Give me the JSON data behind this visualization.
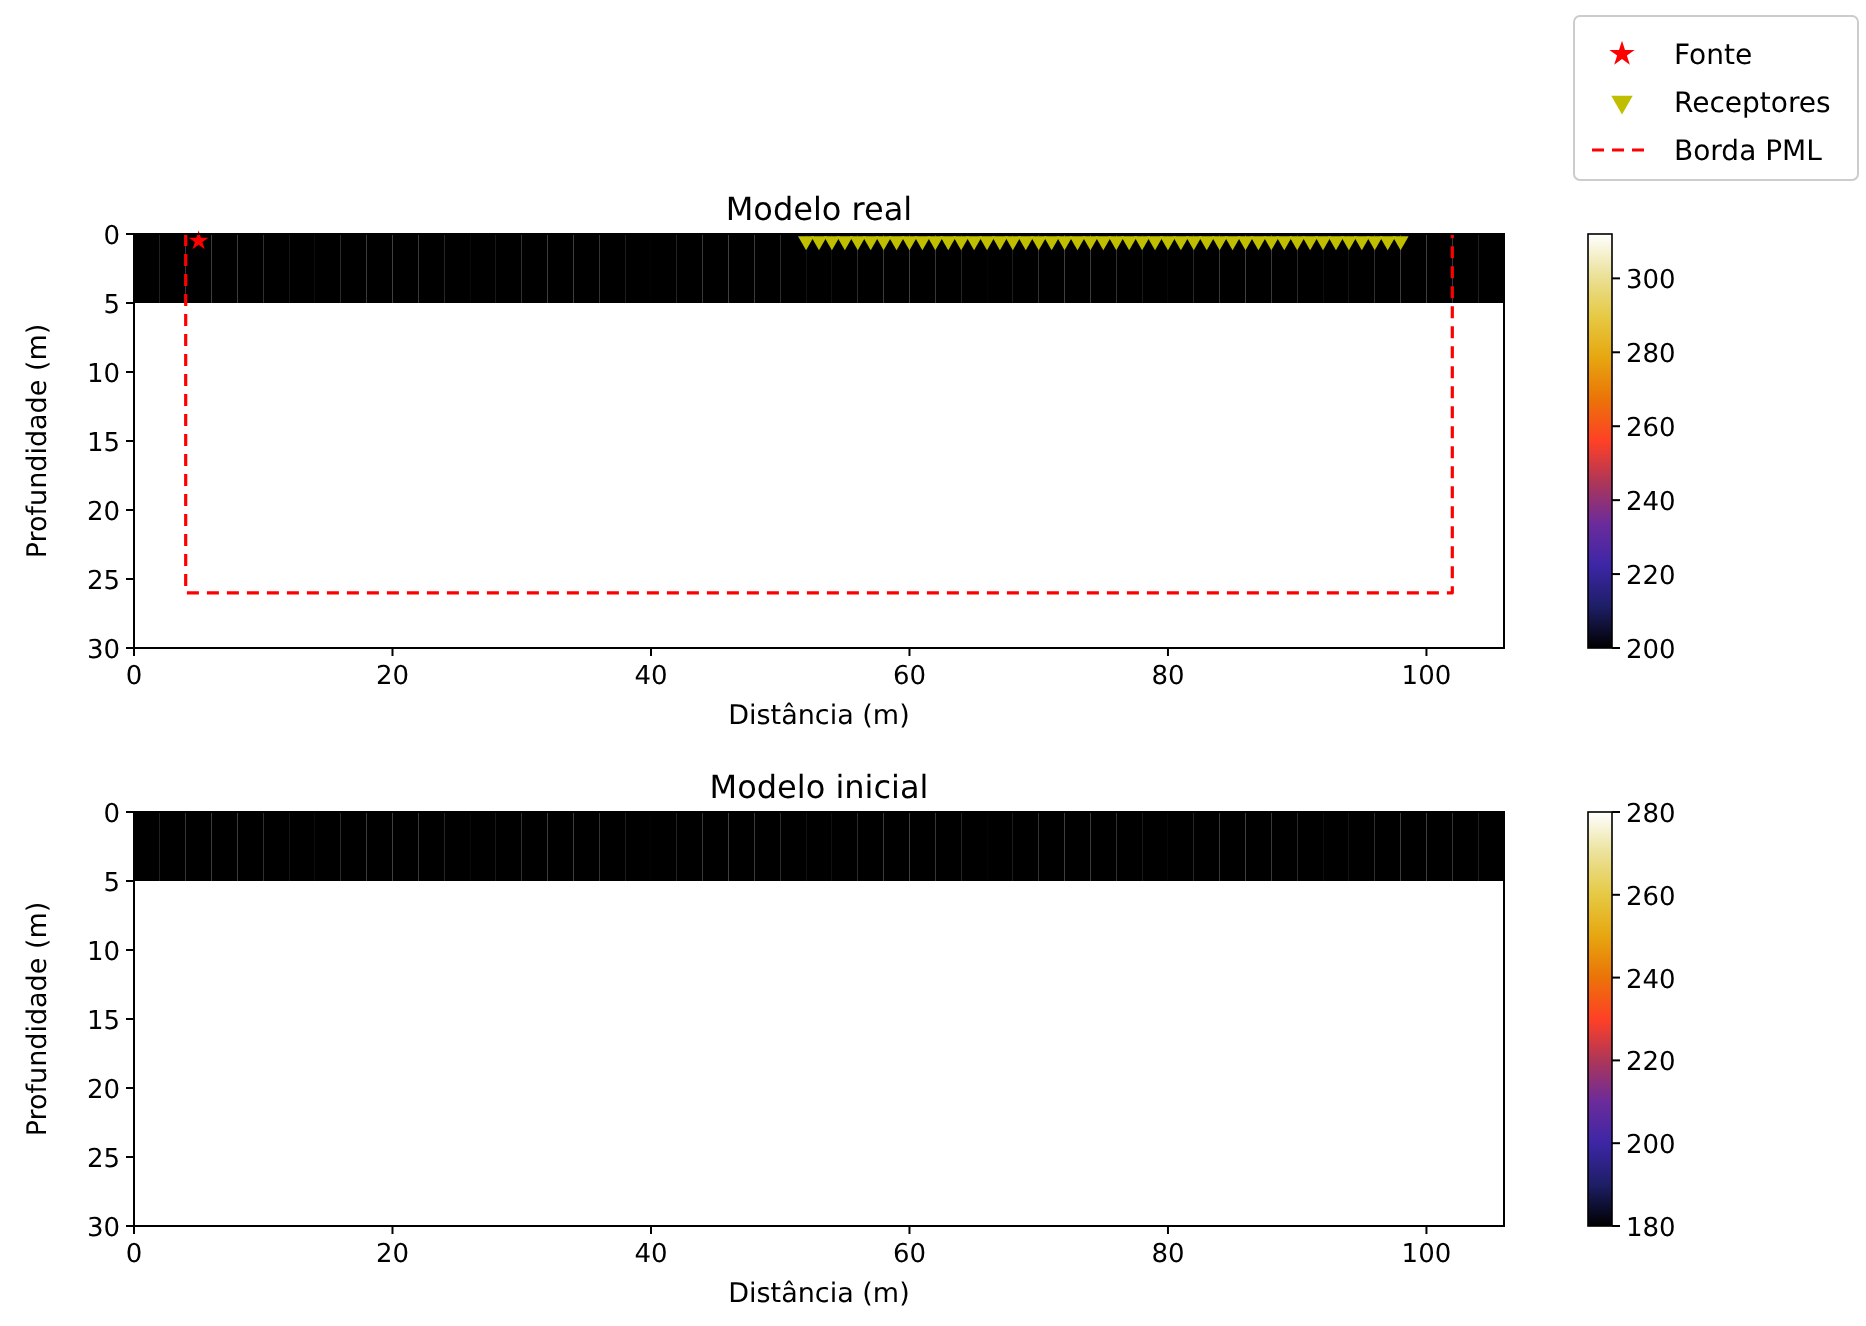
{
  "chart_data": [
    {
      "type": "heatmap",
      "title": "Modelo real",
      "xlabel": "Distância (m)",
      "ylabel": "Profundidade (m)",
      "x": [
        1,
        3,
        5,
        7,
        9,
        11,
        13,
        15,
        17,
        19,
        21,
        23,
        25,
        27,
        29,
        31,
        33,
        35,
        37,
        39,
        41,
        43,
        45,
        47,
        49,
        51,
        53,
        55,
        57,
        59,
        61,
        63,
        65,
        67,
        69,
        71,
        73,
        75,
        77,
        79,
        81,
        83,
        85,
        87,
        89,
        91,
        93,
        95,
        97,
        99,
        101,
        103,
        105
      ],
      "y": [
        2.5,
        7.5,
        12.5,
        17.5,
        22.5,
        27.5
      ],
      "cells": [
        [
          200,
          200,
          200,
          200,
          200,
          200,
          200,
          200,
          200,
          200,
          200,
          200,
          200,
          200,
          200,
          200,
          200,
          200,
          200,
          200,
          200,
          200,
          200,
          200,
          200,
          200,
          200,
          200,
          200,
          200,
          200,
          200,
          200,
          200,
          200,
          200,
          200,
          200,
          200,
          200,
          200,
          200,
          200,
          200,
          200,
          200,
          200,
          200,
          200,
          200,
          200,
          200,
          200
        ],
        [
          312,
          312,
          312,
          312,
          312,
          312,
          312,
          312,
          312,
          312,
          312,
          312,
          312,
          312,
          312,
          312,
          312,
          312,
          312,
          312,
          312,
          312,
          312,
          312,
          312,
          312,
          312,
          312,
          312,
          312,
          312,
          312,
          312,
          312,
          312,
          312,
          312,
          312,
          312,
          312,
          312,
          312,
          312,
          312,
          312,
          312,
          312,
          312,
          312,
          312,
          312,
          312,
          312
        ],
        [
          312,
          312,
          312,
          312,
          312,
          312,
          312,
          312,
          312,
          312,
          312,
          312,
          312,
          312,
          312,
          312,
          312,
          312,
          312,
          312,
          312,
          312,
          312,
          312,
          312,
          312,
          312,
          312,
          312,
          312,
          312,
          312,
          312,
          312,
          312,
          312,
          312,
          312,
          312,
          312,
          312,
          312,
          312,
          312,
          312,
          312,
          312,
          312,
          312,
          312,
          312,
          312,
          312
        ],
        [
          312,
          312,
          312,
          312,
          312,
          312,
          312,
          312,
          312,
          312,
          312,
          312,
          312,
          312,
          312,
          312,
          312,
          312,
          312,
          312,
          312,
          312,
          312,
          312,
          312,
          312,
          312,
          312,
          312,
          312,
          312,
          312,
          312,
          312,
          312,
          312,
          312,
          312,
          312,
          312,
          312,
          312,
          312,
          312,
          312,
          312,
          312,
          312,
          312,
          312,
          312,
          312,
          312
        ],
        [
          312,
          312,
          312,
          312,
          312,
          312,
          312,
          312,
          312,
          312,
          312,
          312,
          312,
          312,
          312,
          312,
          312,
          312,
          312,
          312,
          312,
          312,
          312,
          312,
          312,
          312,
          312,
          312,
          312,
          312,
          312,
          312,
          312,
          312,
          312,
          312,
          312,
          312,
          312,
          312,
          312,
          312,
          312,
          312,
          312,
          312,
          312,
          312,
          312,
          312,
          312,
          312,
          312
        ],
        [
          312,
          312,
          312,
          312,
          312,
          312,
          312,
          312,
          312,
          312,
          312,
          312,
          312,
          312,
          312,
          312,
          312,
          312,
          312,
          312,
          312,
          312,
          312,
          312,
          312,
          312,
          312,
          312,
          312,
          312,
          312,
          312,
          312,
          312,
          312,
          312,
          312,
          312,
          312,
          312,
          312,
          312,
          312,
          312,
          312,
          312,
          312,
          312,
          312,
          312,
          312,
          312,
          312
        ]
      ],
      "clim": [
        200,
        312
      ],
      "cticks": [
        200,
        220,
        240,
        260,
        280,
        300
      ],
      "xlim": [
        0,
        106
      ],
      "ylim": [
        30,
        0
      ],
      "xticks": [
        0,
        20,
        40,
        60,
        80,
        100
      ],
      "yticks": [
        0,
        5,
        10,
        15,
        20,
        25,
        30
      ],
      "legend": "top right",
      "series": [
        {
          "name": "Fonte",
          "type": "scatter",
          "marker": "star",
          "color": "#ff0000",
          "x": [
            5
          ],
          "values": [
            0.5
          ]
        },
        {
          "name": "Receptores",
          "type": "scatter",
          "marker": "triangle",
          "color": "#bfbf00",
          "x": [
            52,
            53,
            54,
            55,
            56,
            57,
            58,
            59,
            60,
            61,
            62,
            63,
            64,
            65,
            66,
            67,
            68,
            69,
            70,
            71,
            72,
            73,
            74,
            75,
            76,
            77,
            78,
            79,
            80,
            81,
            82,
            83,
            84,
            85,
            86,
            87,
            88,
            89,
            90,
            91,
            92,
            93,
            94,
            95,
            96,
            97,
            98
          ],
          "values": [
            0.5,
            0.5,
            0.5,
            0.5,
            0.5,
            0.5,
            0.5,
            0.5,
            0.5,
            0.5,
            0.5,
            0.5,
            0.5,
            0.5,
            0.5,
            0.5,
            0.5,
            0.5,
            0.5,
            0.5,
            0.5,
            0.5,
            0.5,
            0.5,
            0.5,
            0.5,
            0.5,
            0.5,
            0.5,
            0.5,
            0.5,
            0.5,
            0.5,
            0.5,
            0.5,
            0.5,
            0.5,
            0.5,
            0.5,
            0.5,
            0.5,
            0.5,
            0.5,
            0.5,
            0.5,
            0.5,
            0.5
          ]
        },
        {
          "name": "Borda PML",
          "type": "line",
          "line_style": "dashed",
          "color": "#ff0000",
          "x": [
            4,
            4,
            102,
            102
          ],
          "values": [
            0,
            26,
            26,
            0
          ]
        }
      ]
    },
    {
      "type": "heatmap",
      "title": "Modelo inicial",
      "xlabel": "Distância (m)",
      "ylabel": "Profundidade (m)",
      "x": [
        1,
        3,
        5,
        7,
        9,
        11,
        13,
        15,
        17,
        19,
        21,
        23,
        25,
        27,
        29,
        31,
        33,
        35,
        37,
        39,
        41,
        43,
        45,
        47,
        49,
        51,
        53,
        55,
        57,
        59,
        61,
        63,
        65,
        67,
        69,
        71,
        73,
        75,
        77,
        79,
        81,
        83,
        85,
        87,
        89,
        91,
        93,
        95,
        97,
        99,
        101,
        103,
        105
      ],
      "y": [
        2.5,
        7.5,
        12.5,
        17.5,
        22.5,
        27.5
      ],
      "cells": [
        [
          180,
          180,
          180,
          180,
          180,
          180,
          180,
          180,
          180,
          180,
          180,
          180,
          180,
          180,
          180,
          180,
          180,
          180,
          180,
          180,
          180,
          180,
          180,
          180,
          180,
          180,
          180,
          180,
          180,
          180,
          180,
          180,
          180,
          180,
          180,
          180,
          180,
          180,
          180,
          180,
          180,
          180,
          180,
          180,
          180,
          180,
          180,
          180,
          180,
          180,
          180,
          180,
          180
        ],
        [
          280,
          280,
          280,
          280,
          280,
          280,
          280,
          280,
          280,
          280,
          280,
          280,
          280,
          280,
          280,
          280,
          280,
          280,
          280,
          280,
          280,
          280,
          280,
          280,
          280,
          280,
          280,
          280,
          280,
          280,
          280,
          280,
          280,
          280,
          280,
          280,
          280,
          280,
          280,
          280,
          280,
          280,
          280,
          280,
          280,
          280,
          280,
          280,
          280,
          280,
          280,
          280,
          280
        ],
        [
          280,
          280,
          280,
          280,
          280,
          280,
          280,
          280,
          280,
          280,
          280,
          280,
          280,
          280,
          280,
          280,
          280,
          280,
          280,
          280,
          280,
          280,
          280,
          280,
          280,
          280,
          280,
          280,
          280,
          280,
          280,
          280,
          280,
          280,
          280,
          280,
          280,
          280,
          280,
          280,
          280,
          280,
          280,
          280,
          280,
          280,
          280,
          280,
          280,
          280,
          280,
          280,
          280
        ],
        [
          280,
          280,
          280,
          280,
          280,
          280,
          280,
          280,
          280,
          280,
          280,
          280,
          280,
          280,
          280,
          280,
          280,
          280,
          280,
          280,
          280,
          280,
          280,
          280,
          280,
          280,
          280,
          280,
          280,
          280,
          280,
          280,
          280,
          280,
          280,
          280,
          280,
          280,
          280,
          280,
          280,
          280,
          280,
          280,
          280,
          280,
          280,
          280,
          280,
          280,
          280,
          280,
          280
        ],
        [
          280,
          280,
          280,
          280,
          280,
          280,
          280,
          280,
          280,
          280,
          280,
          280,
          280,
          280,
          280,
          280,
          280,
          280,
          280,
          280,
          280,
          280,
          280,
          280,
          280,
          280,
          280,
          280,
          280,
          280,
          280,
          280,
          280,
          280,
          280,
          280,
          280,
          280,
          280,
          280,
          280,
          280,
          280,
          280,
          280,
          280,
          280,
          280,
          280,
          280,
          280,
          280,
          280
        ],
        [
          280,
          280,
          280,
          280,
          280,
          280,
          280,
          280,
          280,
          280,
          280,
          280,
          280,
          280,
          280,
          280,
          280,
          280,
          280,
          280,
          280,
          280,
          280,
          280,
          280,
          280,
          280,
          280,
          280,
          280,
          280,
          280,
          280,
          280,
          280,
          280,
          280,
          280,
          280,
          280,
          280,
          280,
          280,
          280,
          280,
          280,
          280,
          280,
          280,
          280,
          280,
          280,
          280
        ]
      ],
      "clim": [
        180,
        280
      ],
      "cticks": [
        180,
        200,
        220,
        240,
        260,
        280
      ],
      "xlim": [
        0,
        106
      ],
      "ylim": [
        30,
        0
      ],
      "xticks": [
        0,
        20,
        40,
        60,
        80,
        100
      ],
      "yticks": [
        0,
        5,
        10,
        15,
        20,
        25,
        30
      ]
    }
  ]
}
